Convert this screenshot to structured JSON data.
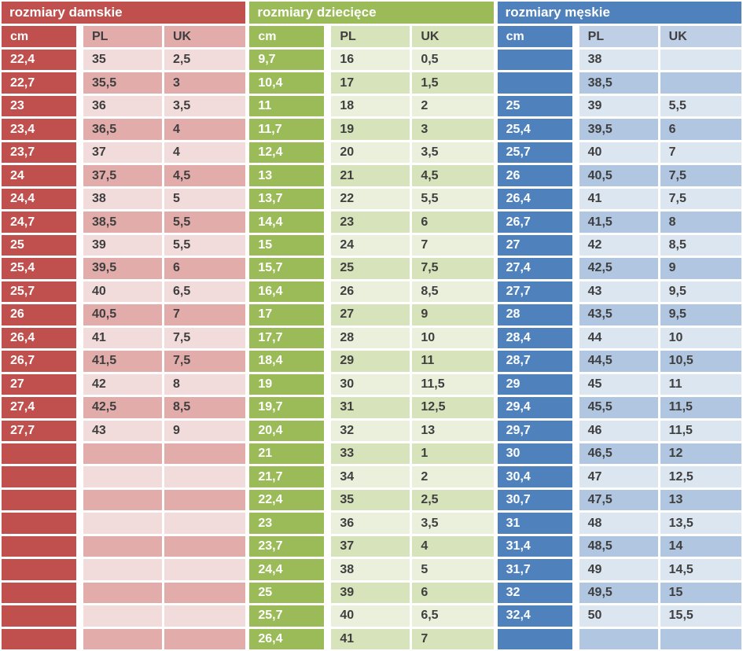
{
  "value_text_color": "#3f3f3f",
  "chart_data": [
    {
      "type": "table",
      "id": "damskie",
      "title": "rozmiary damskie",
      "columns": [
        "cm",
        "PL",
        "UK"
      ],
      "colors": {
        "solid": "#c0504d",
        "header_tint": "#e2acab",
        "row_light": "#f2dcdb",
        "row_dark": "#e2acab",
        "title_text": "#ffffff"
      },
      "rows": [
        [
          "22,4",
          "35",
          "2,5"
        ],
        [
          "22,7",
          "35,5",
          "3"
        ],
        [
          "23",
          "36",
          "3,5"
        ],
        [
          "23,4",
          "36,5",
          "4"
        ],
        [
          "23,7",
          "37",
          "4"
        ],
        [
          "24",
          "37,5",
          "4,5"
        ],
        [
          "24,4",
          "38",
          "5"
        ],
        [
          "24,7",
          "38,5",
          "5,5"
        ],
        [
          "25",
          "39",
          "5,5"
        ],
        [
          "25,4",
          "39,5",
          "6"
        ],
        [
          "25,7",
          "40",
          "6,5"
        ],
        [
          "26",
          "40,5",
          "7"
        ],
        [
          "26,4",
          "41",
          "7,5"
        ],
        [
          "26,7",
          "41,5",
          "7,5"
        ],
        [
          "27",
          "42",
          "8"
        ],
        [
          "27,4",
          "42,5",
          "8,5"
        ],
        [
          "27,7",
          "43",
          "9"
        ],
        [
          "",
          "",
          ""
        ],
        [
          "",
          "",
          ""
        ],
        [
          "",
          "",
          ""
        ],
        [
          "",
          "",
          ""
        ],
        [
          "",
          "",
          ""
        ],
        [
          "",
          "",
          ""
        ],
        [
          "",
          "",
          ""
        ],
        [
          "",
          "",
          ""
        ],
        [
          "",
          "",
          ""
        ]
      ]
    },
    {
      "type": "table",
      "id": "dzieciece",
      "title": "rozmiary dziecięce",
      "columns": [
        "cm",
        "PL",
        "UK"
      ],
      "colors": {
        "solid": "#9bbb59",
        "header_tint": "#d7e3ba",
        "row_light": "#ebf0dd",
        "row_dark": "#d7e3ba",
        "title_text": "#ffffff"
      },
      "rows": [
        [
          "9,7",
          "16",
          "0,5"
        ],
        [
          "10,4",
          "17",
          "1,5"
        ],
        [
          "11",
          "18",
          "2"
        ],
        [
          "11,7",
          "19",
          "3"
        ],
        [
          "12,4",
          "20",
          "3,5"
        ],
        [
          "13",
          "21",
          "4,5"
        ],
        [
          "13,7",
          "22",
          "5,5"
        ],
        [
          "14,4",
          "23",
          "6"
        ],
        [
          "15",
          "24",
          "7"
        ],
        [
          "15,7",
          "25",
          "7,5"
        ],
        [
          "16,4",
          "26",
          "8,5"
        ],
        [
          "17",
          "27",
          "9"
        ],
        [
          "17,7",
          "28",
          "10"
        ],
        [
          "18,4",
          "29",
          "11"
        ],
        [
          "19",
          "30",
          "11,5"
        ],
        [
          "19,7",
          "31",
          "12,5"
        ],
        [
          "20,4",
          "32",
          "13"
        ],
        [
          "21",
          "33",
          "1"
        ],
        [
          "21,7",
          "34",
          "2"
        ],
        [
          "22,4",
          "35",
          "2,5"
        ],
        [
          "23",
          "36",
          "3,5"
        ],
        [
          "23,7",
          "37",
          "4"
        ],
        [
          "24,4",
          "38",
          "5"
        ],
        [
          "25",
          "39",
          "6"
        ],
        [
          "25,7",
          "40",
          "6,5"
        ],
        [
          "26,4",
          "41",
          "7"
        ]
      ]
    },
    {
      "type": "table",
      "id": "meskie",
      "title": "rozmiary męskie",
      "columns": [
        "cm",
        "PL",
        "UK"
      ],
      "colors": {
        "solid": "#4f81bd",
        "header_tint": "#becfe6",
        "row_light": "#dce6f1",
        "row_dark": "#b1c6e0",
        "title_text": "#ffffff"
      },
      "rows": [
        [
          "",
          "38",
          ""
        ],
        [
          "",
          "38,5",
          ""
        ],
        [
          "25",
          "39",
          "5,5"
        ],
        [
          "25,4",
          "39,5",
          "6"
        ],
        [
          "25,7",
          "40",
          "7"
        ],
        [
          "26",
          "40,5",
          "7,5"
        ],
        [
          "26,4",
          "41",
          "7,5"
        ],
        [
          "26,7",
          "41,5",
          "8"
        ],
        [
          "27",
          "42",
          "8,5"
        ],
        [
          "27,4",
          "42,5",
          "9"
        ],
        [
          "27,7",
          "43",
          "9,5"
        ],
        [
          "28",
          "43,5",
          "9,5"
        ],
        [
          "28,4",
          "44",
          "10"
        ],
        [
          "28,7",
          "44,5",
          "10,5"
        ],
        [
          "29",
          "45",
          "11"
        ],
        [
          "29,4",
          "45,5",
          "11,5"
        ],
        [
          "29,7",
          "46",
          "11,5"
        ],
        [
          "30",
          "46,5",
          "12"
        ],
        [
          "30,4",
          "47",
          "12,5"
        ],
        [
          "30,7",
          "47,5",
          "13"
        ],
        [
          "31",
          "48",
          "13,5"
        ],
        [
          "31,4",
          "48,5",
          "14"
        ],
        [
          "31,7",
          "49",
          "14,5"
        ],
        [
          "32",
          "49,5",
          "15"
        ],
        [
          "32,4",
          "50",
          "15,5"
        ],
        [
          "",
          "",
          ""
        ]
      ]
    }
  ]
}
